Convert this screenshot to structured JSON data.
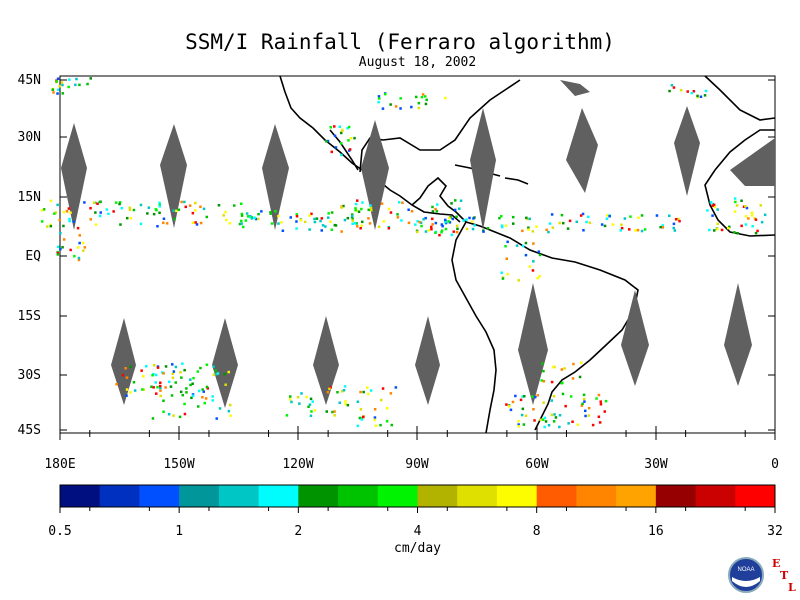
{
  "title": "SSM/I Rainfall (Ferraro algorithm)",
  "subtitle": "August 18, 2002",
  "lat_labels": [
    "45N",
    "30N",
    "15N",
    "EQ",
    "15S",
    "30S",
    "45S"
  ],
  "lon_labels": [
    "180E",
    "150W",
    "120W",
    "90W",
    "60W",
    "30W",
    "0"
  ],
  "colorbar": {
    "colors": [
      "#000f7f",
      "#0030bf",
      "#0050ff",
      "#00969a",
      "#00c6c6",
      "#00fdfd",
      "#009300",
      "#00c300",
      "#00f300",
      "#b2b200",
      "#e0e000",
      "#fdfd00",
      "#ff5b00",
      "#ff8500",
      "#ffa300",
      "#970000",
      "#cb0000",
      "#ff0000"
    ],
    "tick_labels": [
      "0.5",
      "1",
      "2",
      "4",
      "8",
      "16",
      "32"
    ],
    "units": "cm/day"
  },
  "logo": {
    "letters": [
      "E",
      "T",
      "L"
    ],
    "text": "NOAA"
  }
}
